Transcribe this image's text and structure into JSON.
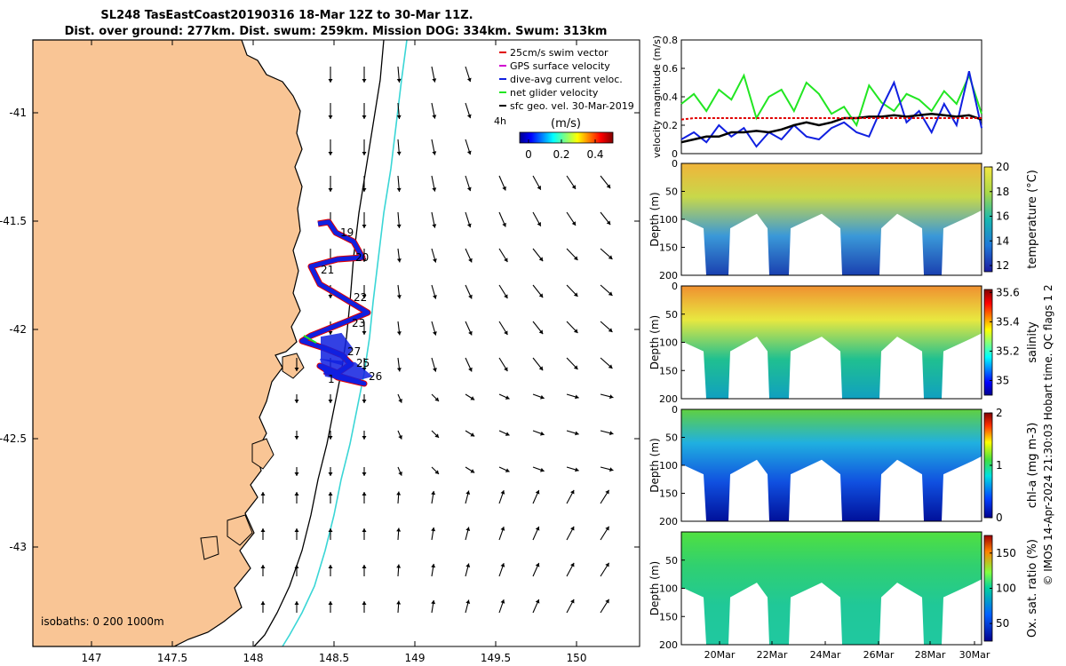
{
  "title": {
    "line1": "SL248 TasEastCoast20190316 18-Mar 12Z to 30-Mar 11Z.",
    "line2": "Dist. over ground: 277km. Dist. swum: 259km. Mission DOG: 334km. Swum: 313km"
  },
  "colors": {
    "land": "#f9c595",
    "isobath_200": "#000000",
    "isobath_1000": "#3ad6d6",
    "track_red": "#e00000",
    "track_blue": "#1020e0",
    "net_velocity": "#22e622",
    "current_velocity": "#1530d8",
    "sfc_velocity": "#000000"
  },
  "map": {
    "x_ticks": [
      "147",
      "147.5",
      "148",
      "148.5",
      "149",
      "149.5",
      "150"
    ],
    "y_ticks": [
      "-41",
      "-41.5",
      "-42",
      "-42.5",
      "-43"
    ],
    "day_labels": [
      "19",
      "20",
      "21",
      "22",
      "23",
      "27",
      "25",
      "26",
      "1"
    ],
    "isobath_label": "isobaths: 0  200  1000m",
    "legend": [
      {
        "label": "25cm/s swim vector",
        "color": "#e00000"
      },
      {
        "label": "GPS surface velocity",
        "color": "#d000d0"
      },
      {
        "label": "dive-avg current veloc.",
        "color": "#1020e0"
      },
      {
        "label": "net glider velocity",
        "color": "#22e622"
      },
      {
        "label": "sfc geo. vel. 30-Mar-2019",
        "color": "#000000"
      }
    ],
    "age_label": "4h",
    "colorbar_unit": "(m/s)",
    "colorbar_ticks": [
      "0",
      "0.2",
      "0.4"
    ]
  },
  "chart_data": [
    {
      "type": "line",
      "ylabel": "velocity magnitude (m/s)",
      "ylim": [
        0,
        0.8
      ],
      "y_ticks": [
        "0",
        "0.2",
        "0.4",
        "0.6",
        "0.8"
      ],
      "xlim": [
        "18-Mar 12Z",
        "30-Mar 11Z"
      ],
      "x": [
        0,
        0.5,
        1,
        1.5,
        2,
        2.5,
        3,
        3.5,
        4,
        4.5,
        5,
        5.5,
        6,
        6.5,
        7,
        7.5,
        8,
        8.5,
        9,
        9.5,
        10,
        10.5,
        11,
        11.5,
        12
      ],
      "series": [
        {
          "name": "net glider velocity",
          "color": "#22e622",
          "values": [
            0.35,
            0.42,
            0.3,
            0.45,
            0.38,
            0.55,
            0.25,
            0.4,
            0.45,
            0.3,
            0.5,
            0.42,
            0.28,
            0.33,
            0.2,
            0.48,
            0.36,
            0.3,
            0.42,
            0.38,
            0.3,
            0.44,
            0.35,
            0.55,
            0.28
          ]
        },
        {
          "name": "dive-avg current veloc.",
          "color": "#1020e0",
          "values": [
            0.1,
            0.15,
            0.08,
            0.2,
            0.12,
            0.18,
            0.05,
            0.15,
            0.1,
            0.2,
            0.12,
            0.1,
            0.18,
            0.22,
            0.15,
            0.12,
            0.32,
            0.5,
            0.22,
            0.3,
            0.15,
            0.35,
            0.2,
            0.58,
            0.18
          ]
        },
        {
          "name": "sfc geo. vel. 30-Mar-2019",
          "color": "#000000",
          "values": [
            0.08,
            0.1,
            0.12,
            0.12,
            0.15,
            0.15,
            0.16,
            0.15,
            0.17,
            0.2,
            0.22,
            0.2,
            0.22,
            0.25,
            0.25,
            0.26,
            0.26,
            0.27,
            0.26,
            0.27,
            0.28,
            0.27,
            0.26,
            0.27,
            0.24
          ]
        },
        {
          "name": "25cm/s swim vector",
          "color": "#e00000",
          "values": [
            0.24,
            0.25,
            0.25,
            0.25,
            0.25,
            0.25,
            0.25,
            0.25,
            0.25,
            0.25,
            0.25,
            0.25,
            0.25,
            0.25,
            0.25,
            0.25,
            0.25,
            0.25,
            0.25,
            0.25,
            0.25,
            0.25,
            0.25,
            0.25,
            0.25
          ]
        }
      ]
    },
    {
      "type": "heatmap",
      "variable": "temperature",
      "clabel": "temperature (°C)",
      "ylabel": "Depth (m)",
      "ylim": [
        200,
        0
      ],
      "clim": [
        11.5,
        20
      ],
      "colorbar_ticks": [
        "12",
        "14",
        "16",
        "18",
        "20"
      ],
      "depth_ticks": [
        "0",
        "50",
        "100",
        "150",
        "200"
      ]
    },
    {
      "type": "heatmap",
      "variable": "salinity",
      "clabel": "salinity",
      "ylabel": "Depth (m)",
      "ylim": [
        200,
        0
      ],
      "clim": [
        34.9,
        35.62
      ],
      "colorbar_ticks": [
        "35",
        "35.2",
        "35.4",
        "35.6"
      ],
      "depth_ticks": [
        "0",
        "50",
        "100",
        "150",
        "200"
      ]
    },
    {
      "type": "heatmap",
      "variable": "chl-a",
      "clabel": "chl-a (mg m-3)",
      "ylabel": "Depth (m)",
      "ylim": [
        200,
        0
      ],
      "clim": [
        0,
        2
      ],
      "colorbar_ticks": [
        "0",
        "1",
        "2"
      ],
      "depth_ticks": [
        "0",
        "50",
        "100",
        "150",
        "200"
      ]
    },
    {
      "type": "heatmap",
      "variable": "oxygen saturation",
      "clabel": "Ox. sat. ratio (%)",
      "ylabel": "Depth (m)",
      "ylim": [
        200,
        0
      ],
      "clim": [
        25,
        175
      ],
      "colorbar_ticks": [
        "50",
        "100",
        "150"
      ],
      "depth_ticks": [
        "50",
        "100",
        "150",
        "200"
      ],
      "x_ticks": [
        "20Mar",
        "22Mar",
        "24Mar",
        "26Mar",
        "28Mar",
        "30Mar"
      ]
    }
  ],
  "credit": "© IMOS 14-Apr-2024 21:30:03 Hobart time. QC flags 1  2"
}
